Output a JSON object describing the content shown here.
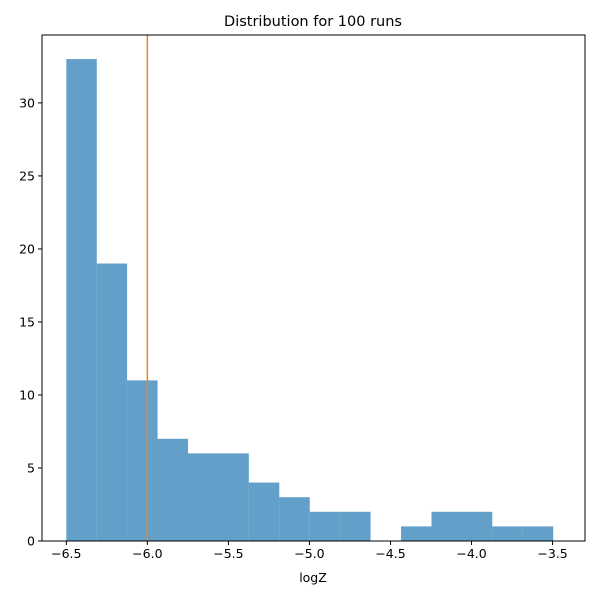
{
  "chart_data": {
    "type": "bar",
    "title": "Distribution for 100 runs",
    "xlabel": "logZ",
    "ylabel": "",
    "x_ticks": [
      "−6.5",
      "−6.0",
      "−5.5",
      "−5.0",
      "−4.5",
      "−4.0",
      "−3.5"
    ],
    "x_tick_values": [
      -6.5,
      -6.0,
      -5.5,
      -5.0,
      -4.5,
      -4.0,
      -3.5
    ],
    "y_ticks": [
      "0",
      "5",
      "10",
      "15",
      "20",
      "25",
      "30"
    ],
    "y_tick_values": [
      0,
      5,
      10,
      15,
      20,
      25,
      30
    ],
    "xlim": [
      -6.65,
      -3.3
    ],
    "ylim": [
      0,
      34.65
    ],
    "bin_edges": [
      -6.5,
      -6.312,
      -6.125,
      -5.937,
      -5.749,
      -5.561,
      -5.374,
      -5.186,
      -4.998,
      -4.81,
      -4.623,
      -4.435,
      -4.247,
      -4.059,
      -3.872,
      -3.684,
      -3.496
    ],
    "values": [
      33,
      19,
      11,
      7,
      6,
      6,
      4,
      3,
      2,
      2,
      0,
      1,
      2,
      2,
      1,
      1
    ],
    "vertical_line_x": -6.0,
    "colors": {
      "bars": "#1f77b4",
      "bar_alpha": 0.7,
      "vertical_line": "#ff7f0e"
    },
    "grid": false,
    "legend": "none"
  }
}
